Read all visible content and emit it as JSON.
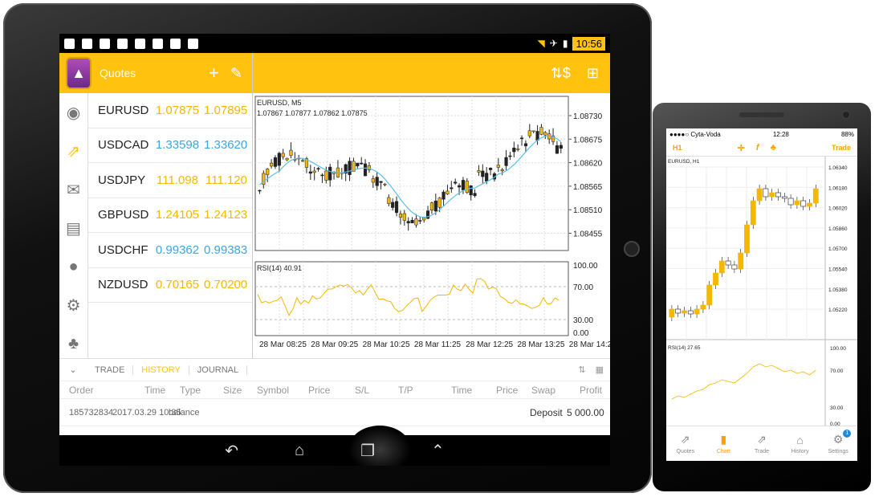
{
  "tablet": {
    "status_time": "10:56",
    "toolbar_title": "Quotes",
    "quotes": [
      {
        "symbol": "EURUSD",
        "bid": "1.07875",
        "ask": "1.07895",
        "dir": "up"
      },
      {
        "symbol": "USDCAD",
        "bid": "1.33598",
        "ask": "1.33620",
        "dir": "down"
      },
      {
        "symbol": "USDJPY",
        "bid": "111.098",
        "ask": "111.120",
        "dir": "up"
      },
      {
        "symbol": "GBPUSD",
        "bid": "1.24105",
        "ask": "1.24123",
        "dir": "up"
      },
      {
        "symbol": "USDCHF",
        "bid": "0.99362",
        "ask": "0.99383",
        "dir": "down"
      },
      {
        "symbol": "NZDUSD",
        "bid": "0.70165",
        "ask": "0.70200",
        "dir": "up"
      }
    ],
    "chart": {
      "symbol_label": "EURUSD, M5",
      "ohlc_label": "1.07867 1.07877 1.07862 1.07875",
      "price_ticks": [
        "1.08730",
        "1.08675",
        "1.08620",
        "1.08565",
        "1.08510",
        "1.08455"
      ],
      "rsi_label": "RSI(14) 40.91",
      "rsi_ticks": [
        "100.00",
        "70.00",
        "30.00",
        "0.00"
      ],
      "time_ticks": [
        "28 Mar 08:25",
        "28 Mar 09:25",
        "28 Mar 10:25",
        "28 Mar 11:25",
        "28 Mar 12:25",
        "28 Mar 13:25",
        "28 Mar 14:2"
      ]
    },
    "tabs": [
      "TRADE",
      "HISTORY",
      "JOURNAL"
    ],
    "active_tab": "HISTORY",
    "history_headers": [
      "Order",
      "Time",
      "Type",
      "Size",
      "Symbol",
      "Price",
      "S/L",
      "T/P",
      "Time",
      "Price",
      "Swap",
      "Profit"
    ],
    "history_row": {
      "order": "185732834",
      "time": "2017.03.29 10:35",
      "type": "balance",
      "comment": "Deposit",
      "profit": "5 000.00"
    }
  },
  "phone": {
    "carrier": "●●●●○ Cyta-Voda",
    "time": "12:28",
    "battery": "88%",
    "timeframe": "H1",
    "trade_label": "Trade",
    "chart_label": "EURUSD, H1",
    "price_ticks": [
      "1.06340",
      "1.06180",
      "1.06020",
      "1.05860",
      "1.05700",
      "1.05540",
      "1.05380",
      "1.05220"
    ],
    "rsi_label": "RSI(14) 27.65",
    "rsi_ticks": [
      "100.00",
      "70.00",
      "30.00",
      "0.00"
    ],
    "nav": [
      "Quotes",
      "Chart",
      "Trade",
      "History",
      "Settings"
    ],
    "active_nav": "Chart",
    "settings_badge": "1"
  },
  "colors": {
    "accent": "#ffc20e",
    "bear": "#222222",
    "ma": "#5bc0eb",
    "rsi": "#f5b800"
  }
}
